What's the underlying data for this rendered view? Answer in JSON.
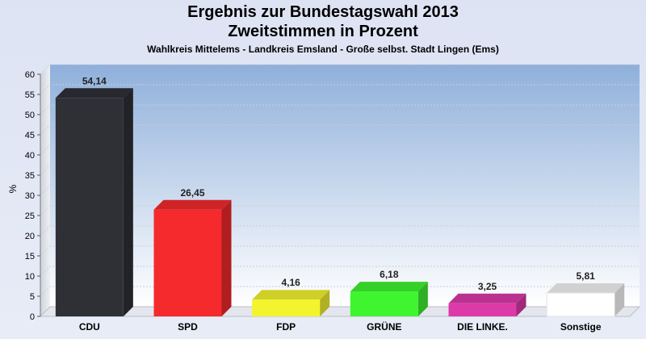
{
  "colors": {
    "page_bg": "#dfe5f4",
    "plot_top": "#8fb0db",
    "plot_bottom": "#ffffff"
  },
  "chart_data": {
    "type": "bar",
    "title": "Ergebnis zur Bundestagswahl 2013",
    "title2": "Zweitstimmen in Prozent",
    "subtitle": "Wahlkreis Mittelems - Landkreis Emsland - Große selbst. Stadt Lingen (Ems)",
    "ylabel": "%",
    "ylim": [
      0,
      60
    ],
    "yticks": [
      "0",
      "5",
      "10",
      "15",
      "20",
      "25",
      "30",
      "35",
      "40",
      "45",
      "50",
      "55",
      "60"
    ],
    "categories": [
      "CDU",
      "SPD",
      "FDP",
      "GRÜNE",
      "DIE LINKE.",
      "Sonstige"
    ],
    "values": [
      54.14,
      26.45,
      4.16,
      6.18,
      3.25,
      5.81
    ],
    "value_labels": [
      "54,14",
      "26,45",
      "4,16",
      "6,18",
      "3,25",
      "5,81"
    ],
    "bar_colors": [
      "#2e3036",
      "#f42a2d",
      "#f4f42e",
      "#3ef52f",
      "#dc3aa9",
      "#ffffff"
    ],
    "grid": true,
    "style": "3d"
  }
}
